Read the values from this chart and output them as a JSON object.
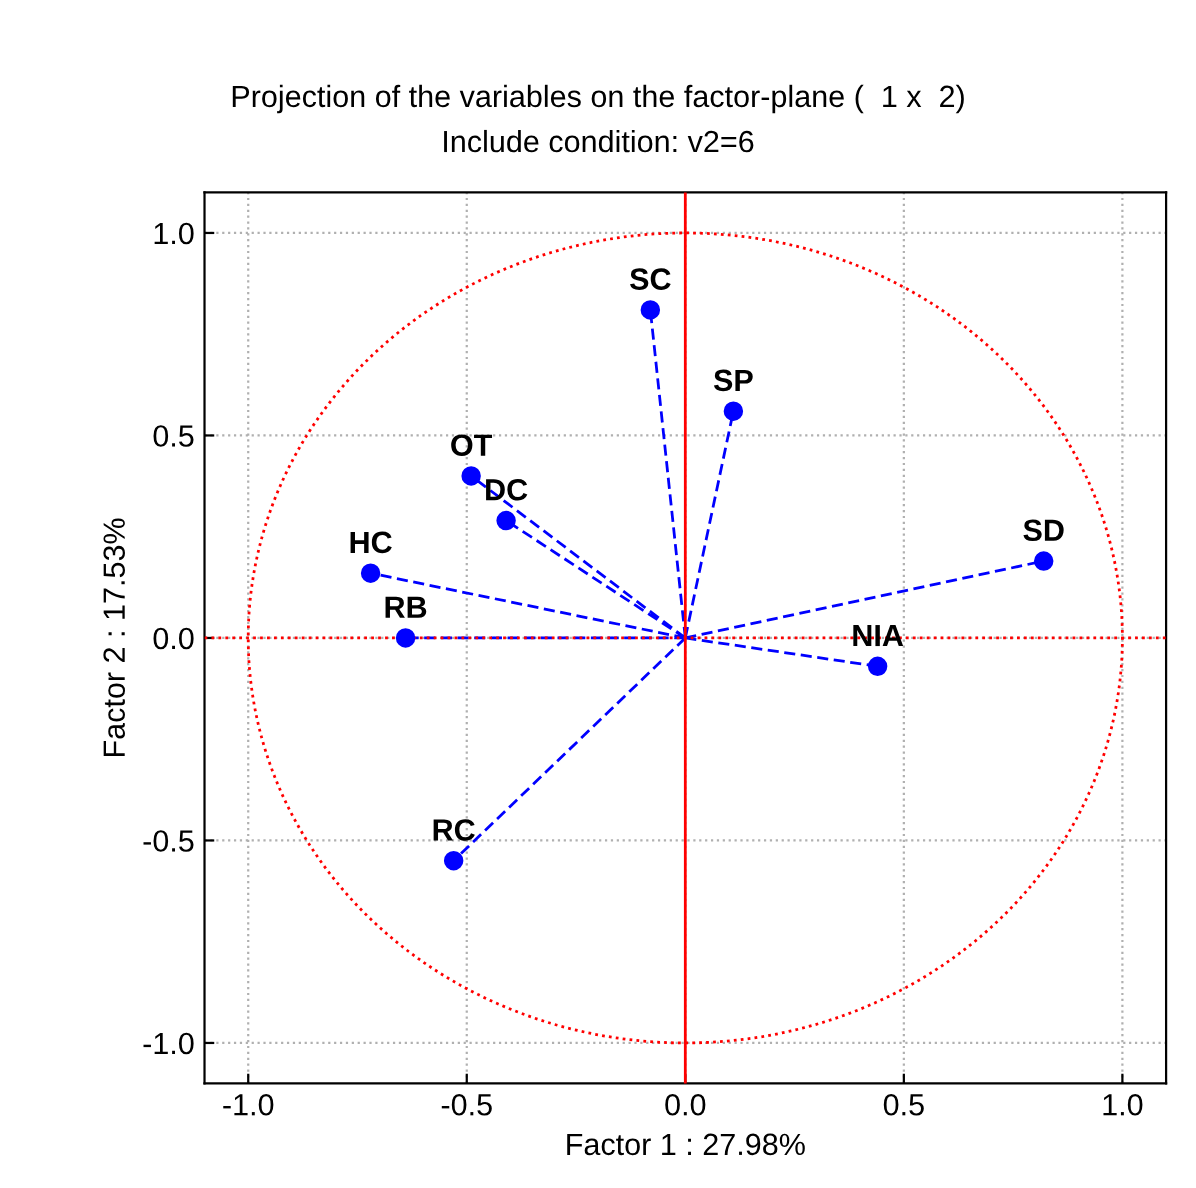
{
  "chart_data": {
    "type": "scatter",
    "title": "Projection of the variables on the factor-plane (  1 x  2)",
    "subtitle": "Include condition: v2=6",
    "xlabel": "Factor 1 : 27.98%",
    "ylabel": "Factor 2 : 17.53%",
    "xlim": [
      -1.1,
      1.1
    ],
    "ylim": [
      -1.1,
      1.1
    ],
    "xticks": [
      {
        "value": -1,
        "label": "-1.0"
      },
      {
        "value": -0.5,
        "label": "-0.5"
      },
      {
        "value": 0,
        "label": "0.0"
      },
      {
        "value": 0.5,
        "label": "0.5"
      },
      {
        "value": 1,
        "label": "1.0"
      }
    ],
    "yticks": [
      {
        "value": -1,
        "label": "-1.0"
      },
      {
        "value": -0.5,
        "label": "-0.5"
      },
      {
        "value": 0,
        "label": "0.0"
      },
      {
        "value": 0.5,
        "label": "0.5"
      },
      {
        "value": 1,
        "label": "1.0"
      }
    ],
    "grid": true,
    "legend": false,
    "ref_lines": [
      {
        "axis": "x",
        "value": 0,
        "color": "#ff0000",
        "line_style": "solid"
      },
      {
        "axis": "y",
        "value": 0,
        "color": "#ff0000",
        "line_style": "dotted"
      }
    ],
    "series": [
      {
        "type": "line",
        "color": "#0000ff",
        "line_style": "dashed",
        "marker": "none",
        "x": [
          0,
          -0.08,
          null,
          0,
          0.11,
          null,
          0,
          -0.49,
          null,
          0,
          -0.41,
          null,
          0,
          -0.72,
          null,
          0,
          -0.64,
          null,
          0,
          0.82,
          null,
          0,
          0.44,
          null,
          0,
          -0.53
        ],
        "values": [
          0,
          0.81,
          null,
          0,
          0.56,
          null,
          0,
          0.4,
          null,
          0,
          0.29,
          null,
          0,
          0.16,
          null,
          0,
          0.0,
          null,
          0,
          0.19,
          null,
          0,
          -0.07,
          null,
          0,
          -0.55
        ]
      },
      {
        "color": "#0000ff",
        "marker": "circle",
        "x": [
          -0.08,
          0.11,
          -0.49,
          -0.41,
          -0.72,
          -0.64,
          0.82,
          0.44,
          -0.53
        ],
        "values": [
          0.81,
          0.56,
          0.4,
          0.29,
          0.16,
          0.0,
          0.19,
          -0.07,
          -0.55
        ]
      }
    ],
    "annotations": [
      {
        "text": "SC",
        "x": -0.08,
        "y": 0.81
      },
      {
        "text": "SP",
        "x": 0.11,
        "y": 0.56
      },
      {
        "text": "OT",
        "x": -0.49,
        "y": 0.4
      },
      {
        "text": "DC",
        "x": -0.41,
        "y": 0.29
      },
      {
        "text": "HC",
        "x": -0.72,
        "y": 0.16
      },
      {
        "text": "RB",
        "x": -0.64,
        "y": 0.0
      },
      {
        "text": "SD",
        "x": 0.82,
        "y": 0.19
      },
      {
        "text": "NIA",
        "x": 0.44,
        "y": -0.07
      },
      {
        "text": "RC",
        "x": -0.53,
        "y": -0.55
      }
    ]
  }
}
